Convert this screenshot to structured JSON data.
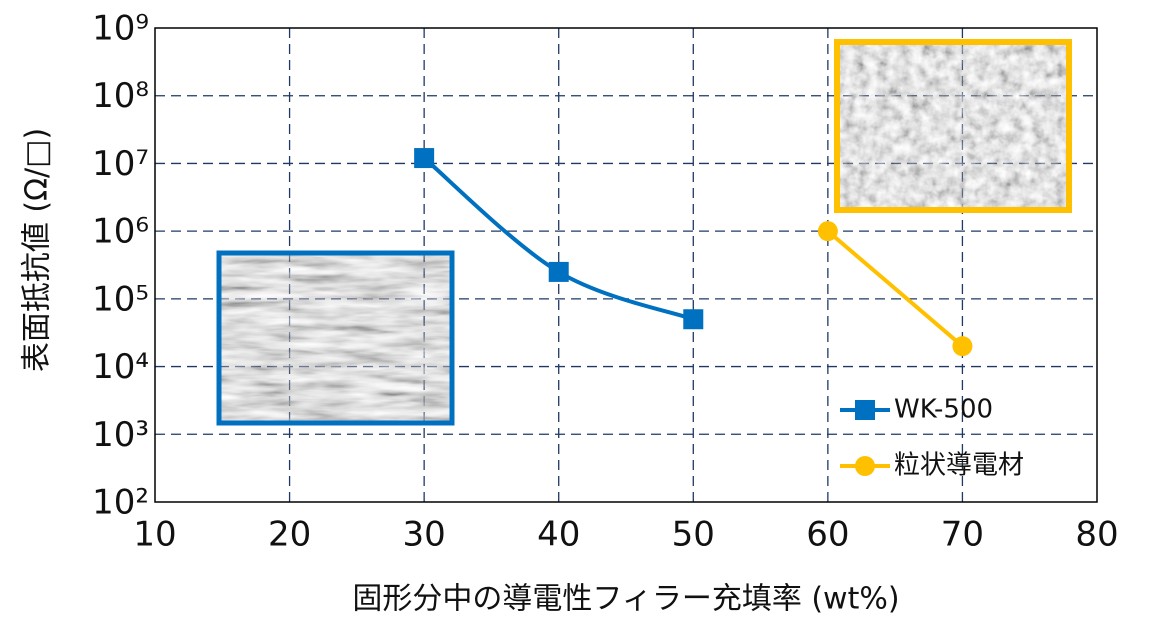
{
  "chart_data": {
    "type": "line",
    "xlabel": "固形分中の導電性フィラー充填率 (wt%)",
    "ylabel": "表面抵抗値 (Ω/□)",
    "xlim": [
      10,
      80
    ],
    "xticks": [
      10,
      20,
      30,
      40,
      50,
      60,
      70,
      80
    ],
    "ylim": [
      100,
      1000000000
    ],
    "ylog": true,
    "yticks": [
      {
        "value": 100,
        "label": "10²"
      },
      {
        "value": 1000,
        "label": "10³"
      },
      {
        "value": 10000,
        "label": "10⁴"
      },
      {
        "value": 100000,
        "label": "10⁵"
      },
      {
        "value": 1000000,
        "label": "10⁶"
      },
      {
        "value": 10000000,
        "label": "10⁷"
      },
      {
        "value": 100000000,
        "label": "10⁸"
      },
      {
        "value": 1000000000,
        "label": "10⁹"
      }
    ],
    "grid": true,
    "legend": "lower right",
    "series": [
      {
        "name": "WK-500",
        "color": "#0070c0",
        "marker": "square",
        "x": [
          30,
          40,
          50
        ],
        "values": [
          12000000,
          250000,
          50000
        ]
      },
      {
        "name": "粒状導電材",
        "color": "#ffc000",
        "marker": "circle",
        "x": [
          60,
          70
        ],
        "values": [
          1000000,
          20000
        ]
      }
    ]
  }
}
